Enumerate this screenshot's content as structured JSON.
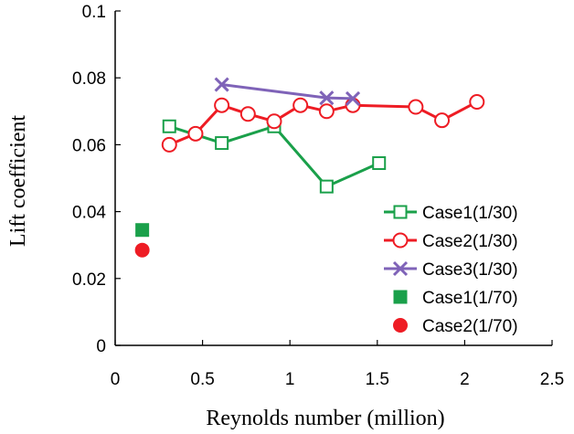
{
  "chart_data": {
    "type": "scatter",
    "title": "",
    "xlabel": "Reynolds number (million)",
    "ylabel": "Lift coefficient",
    "xlim": [
      0,
      2.5
    ],
    "ylim": [
      0,
      0.1
    ],
    "x_ticks": [
      0,
      0.5,
      1,
      1.5,
      2,
      2.5
    ],
    "x_tick_labels": [
      "0",
      "0.5",
      "1",
      "1.5",
      "2",
      "2.5"
    ],
    "y_ticks": [
      0,
      0.02,
      0.04,
      0.06,
      0.08,
      0.1
    ],
    "y_tick_labels": [
      "0",
      "0.02",
      "0.04",
      "0.06",
      "0.08",
      "0.1"
    ],
    "grid": false,
    "legend_position": "bottom-right",
    "series": [
      {
        "name": "Case1(1/30)",
        "color": "#1aa04a",
        "marker": "open-square",
        "line": true,
        "points": [
          {
            "x": 0.31,
            "y": 0.0655
          },
          {
            "x": 0.61,
            "y": 0.0605
          },
          {
            "x": 0.91,
            "y": 0.0655
          },
          {
            "x": 1.21,
            "y": 0.0475
          },
          {
            "x": 1.51,
            "y": 0.0545
          }
        ]
      },
      {
        "name": "Case2(1/30)",
        "color": "#ee1c24",
        "marker": "open-circle",
        "line": true,
        "points": [
          {
            "x": 0.31,
            "y": 0.06
          },
          {
            "x": 0.46,
            "y": 0.0633
          },
          {
            "x": 0.61,
            "y": 0.0718
          },
          {
            "x": 0.76,
            "y": 0.0692
          },
          {
            "x": 0.91,
            "y": 0.067
          },
          {
            "x": 1.06,
            "y": 0.0718
          },
          {
            "x": 1.21,
            "y": 0.07
          },
          {
            "x": 1.36,
            "y": 0.0718
          },
          {
            "x": 1.72,
            "y": 0.0713
          },
          {
            "x": 1.87,
            "y": 0.0673
          },
          {
            "x": 2.07,
            "y": 0.0728
          }
        ]
      },
      {
        "name": "Case3(1/30)",
        "color": "#7f63b8",
        "marker": "x",
        "line": true,
        "points": [
          {
            "x": 0.61,
            "y": 0.078
          },
          {
            "x": 1.21,
            "y": 0.074
          },
          {
            "x": 1.36,
            "y": 0.0738
          }
        ]
      },
      {
        "name": "Case1(1/70)",
        "color": "#1aa04a",
        "marker": "filled-square",
        "line": false,
        "points": [
          {
            "x": 0.155,
            "y": 0.0345
          }
        ]
      },
      {
        "name": "Case2(1/70)",
        "color": "#ee1c24",
        "marker": "filled-circle",
        "line": false,
        "points": [
          {
            "x": 0.155,
            "y": 0.0285
          }
        ]
      }
    ]
  }
}
